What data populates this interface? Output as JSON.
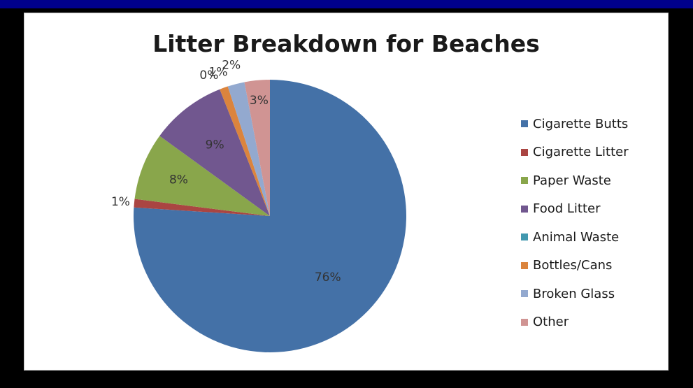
{
  "chart_data": {
    "type": "pie",
    "title": "Litter Breakdown for Beaches",
    "legend_position": "right",
    "slices": [
      {
        "label": "Cigarette Butts",
        "value": 76,
        "display": "76%",
        "color": "#4471a7"
      },
      {
        "label": "Cigarette Litter",
        "value": 1,
        "display": "1%",
        "color": "#aa4542"
      },
      {
        "label": "Paper Waste",
        "value": 8,
        "display": "8%",
        "color": "#89a64b"
      },
      {
        "label": "Food Litter",
        "value": 9,
        "display": "9%",
        "color": "#71578f"
      },
      {
        "label": "Animal Waste",
        "value": 0,
        "display": "0%",
        "color": "#4298af"
      },
      {
        "label": "Bottles/Cans",
        "value": 1,
        "display": "1%",
        "color": "#db843d"
      },
      {
        "label": "Broken Glass",
        "value": 2,
        "display": "2%",
        "color": "#93a9cf"
      },
      {
        "label": "Other",
        "value": 3,
        "display": "3%",
        "color": "#d09493"
      }
    ]
  }
}
